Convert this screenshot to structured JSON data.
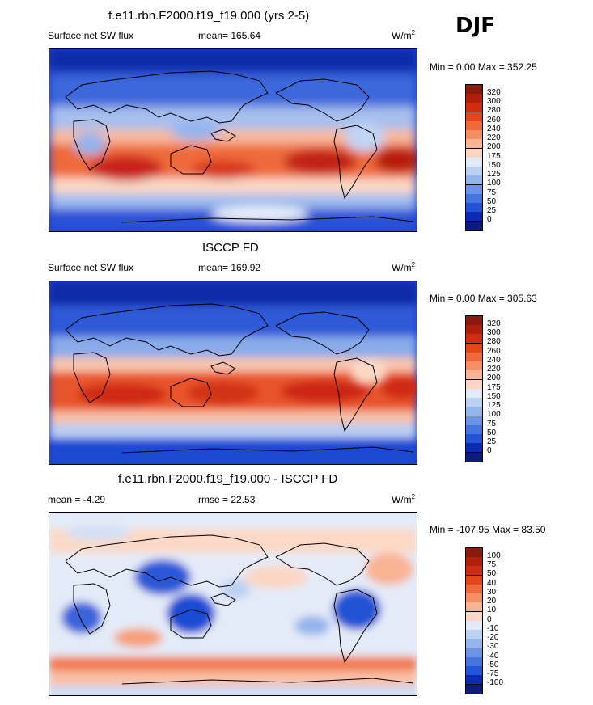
{
  "season": "DJF",
  "panels": [
    {
      "title": "f.e11.rbn.F2000.f19_f19.000 (yrs 2-5)",
      "left_label": "Surface net SW flux",
      "stat": "mean= 165.64",
      "unit_base": "W/m",
      "unit_sup": "2",
      "minmax": "Min =   0.00 Max = 352.25",
      "colorbar": {
        "labels": [
          "320",
          "300",
          "280",
          "260",
          "240",
          "220",
          "200",
          "175",
          "150",
          "125",
          "100",
          "75",
          "50",
          "25",
          "0"
        ],
        "colors": [
          "#8b1a0e",
          "#b01e0c",
          "#d02c10",
          "#e4461c",
          "#ef6a3a",
          "#f58e62",
          "#f9b395",
          "#fcd6c3",
          "#e2eaf8",
          "#bcd0f2",
          "#94b4ec",
          "#6b93e6",
          "#4775e0",
          "#2354d8",
          "#0a2bb5",
          "#0c1a7a"
        ]
      }
    },
    {
      "title": "ISCCP FD",
      "left_label": "Surface net SW flux",
      "stat": "mean= 169.92",
      "unit_base": "W/m",
      "unit_sup": "2",
      "minmax": "Min =   0.00 Max = 305.63",
      "colorbar": {
        "labels": [
          "320",
          "300",
          "280",
          "260",
          "240",
          "220",
          "200",
          "175",
          "150",
          "125",
          "100",
          "75",
          "50",
          "25",
          "0"
        ],
        "colors": [
          "#8b1a0e",
          "#b01e0c",
          "#d02c10",
          "#e4461c",
          "#ef6a3a",
          "#f58e62",
          "#f9b395",
          "#fcd6c3",
          "#e2eaf8",
          "#bcd0f2",
          "#94b4ec",
          "#6b93e6",
          "#4775e0",
          "#2354d8",
          "#0a2bb5",
          "#0c1a7a"
        ]
      }
    },
    {
      "title": "f.e11.rbn.F2000.f19_f19.000 - ISCCP FD",
      "left_label": "mean =  -4.29",
      "stat": "rmse =  22.53",
      "unit_base": "W/m",
      "unit_sup": "2",
      "minmax": "Min = -107.95 Max =  83.50",
      "colorbar": {
        "labels": [
          "100",
          "75",
          "50",
          "40",
          "30",
          "20",
          "10",
          "0",
          "-10",
          "-20",
          "-30",
          "-40",
          "-50",
          "-75",
          "-100"
        ],
        "colors": [
          "#8b1a0e",
          "#b01e0c",
          "#d02c10",
          "#e4461c",
          "#ef6a3a",
          "#f58e62",
          "#f9b395",
          "#fcd6c3",
          "#e2eaf8",
          "#bcd0f2",
          "#94b4ec",
          "#6b93e6",
          "#4775e0",
          "#2354d8",
          "#0a2bb5",
          "#0c1a7a"
        ]
      }
    }
  ]
}
